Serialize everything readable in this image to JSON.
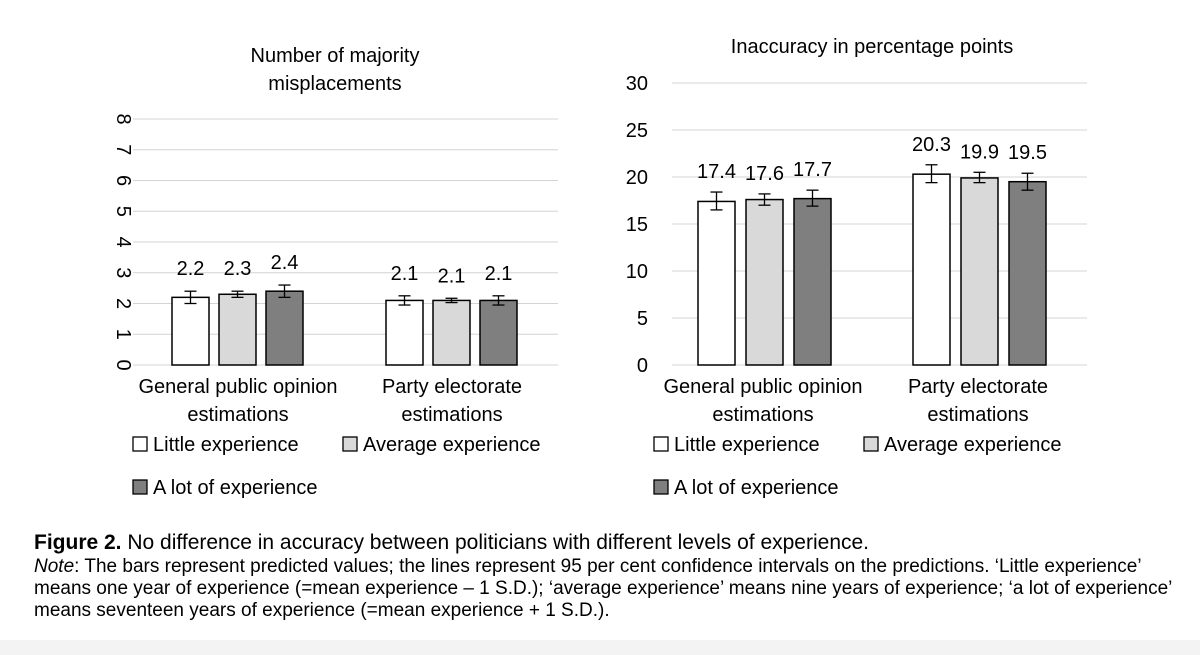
{
  "chart_data": [
    {
      "type": "bar",
      "title": "Number of majority misplacements",
      "title_lines": [
        "Number of majority",
        "misplacements"
      ],
      "categories": [
        "General public opinion estimations",
        "Party electorate estimations"
      ],
      "category_lines": [
        [
          "General public opinion",
          "estimations"
        ],
        [
          "Party electorate",
          "estimations"
        ]
      ],
      "series": [
        {
          "name": "Little experience",
          "values": [
            2.2,
            2.1
          ],
          "ci_low": [
            2.0,
            1.95
          ],
          "ci_high": [
            2.4,
            2.25
          ],
          "color": "#ffffff"
        },
        {
          "name": "Average experience",
          "values": [
            2.3,
            2.1
          ],
          "ci_low": [
            2.2,
            2.03
          ],
          "ci_high": [
            2.4,
            2.17
          ],
          "color": "#d9d9d9"
        },
        {
          "name": "A lot of experience",
          "values": [
            2.4,
            2.1
          ],
          "ci_low": [
            2.2,
            1.95
          ],
          "ci_high": [
            2.6,
            2.25
          ],
          "color": "#7f7f7f"
        }
      ],
      "data_labels": [
        [
          "2.2",
          "2.1"
        ],
        [
          "2.3",
          "2.1"
        ],
        [
          "2.4",
          "2.1"
        ]
      ],
      "ylim": [
        0,
        8
      ],
      "yticks": [
        "0",
        "1",
        "2",
        "3",
        "4",
        "5",
        "6",
        "7",
        "8"
      ],
      "ytick_rotation": "vertical",
      "grid": true,
      "legend_position": "bottom",
      "legend": [
        "Little experience",
        "Average experience",
        "A lot of experience"
      ]
    },
    {
      "type": "bar",
      "title": "Inaccuracy in percentage points",
      "title_lines": [
        "Inaccuracy in percentage points"
      ],
      "categories": [
        "General public opinion estimations",
        "Party electorate estimations"
      ],
      "category_lines": [
        [
          "General public opinion",
          "estimations"
        ],
        [
          "Party electorate",
          "estimations"
        ]
      ],
      "series": [
        {
          "name": "Little experience",
          "values": [
            17.4,
            20.3
          ],
          "ci_low": [
            16.5,
            19.4
          ],
          "ci_high": [
            18.4,
            21.3
          ],
          "color": "#ffffff"
        },
        {
          "name": "Average experience",
          "values": [
            17.6,
            19.9
          ],
          "ci_low": [
            17.0,
            19.4
          ],
          "ci_high": [
            18.2,
            20.5
          ],
          "color": "#d9d9d9"
        },
        {
          "name": "A lot of experience",
          "values": [
            17.7,
            19.5
          ],
          "ci_low": [
            16.9,
            18.6
          ],
          "ci_high": [
            18.6,
            20.4
          ],
          "color": "#7f7f7f"
        }
      ],
      "data_labels": [
        [
          "17.4",
          "20.3"
        ],
        [
          "17.6",
          "19.9"
        ],
        [
          "17.7",
          "19.5"
        ]
      ],
      "ylim": [
        0,
        30
      ],
      "yticks": [
        "0",
        "5",
        "10",
        "15",
        "20",
        "25",
        "30"
      ],
      "grid": true,
      "legend_position": "bottom",
      "legend": [
        "Little experience",
        "Average experience",
        "A lot of experience"
      ]
    }
  ],
  "caption": {
    "label": "Figure 2.",
    "title": "No difference in accuracy between politicians with different levels of experience.",
    "note_label": "Note",
    "note_text": ": The bars represent predicted values; the lines represent 95 per cent confidence intervals on the predictions. ‘Little experience’ means one year of experience (=mean experience – 1 S.D.); ‘average experience’ means nine years of experience; ‘a lot of experience’ means seventeen years of experience (=mean experience + 1 S.D.)."
  }
}
